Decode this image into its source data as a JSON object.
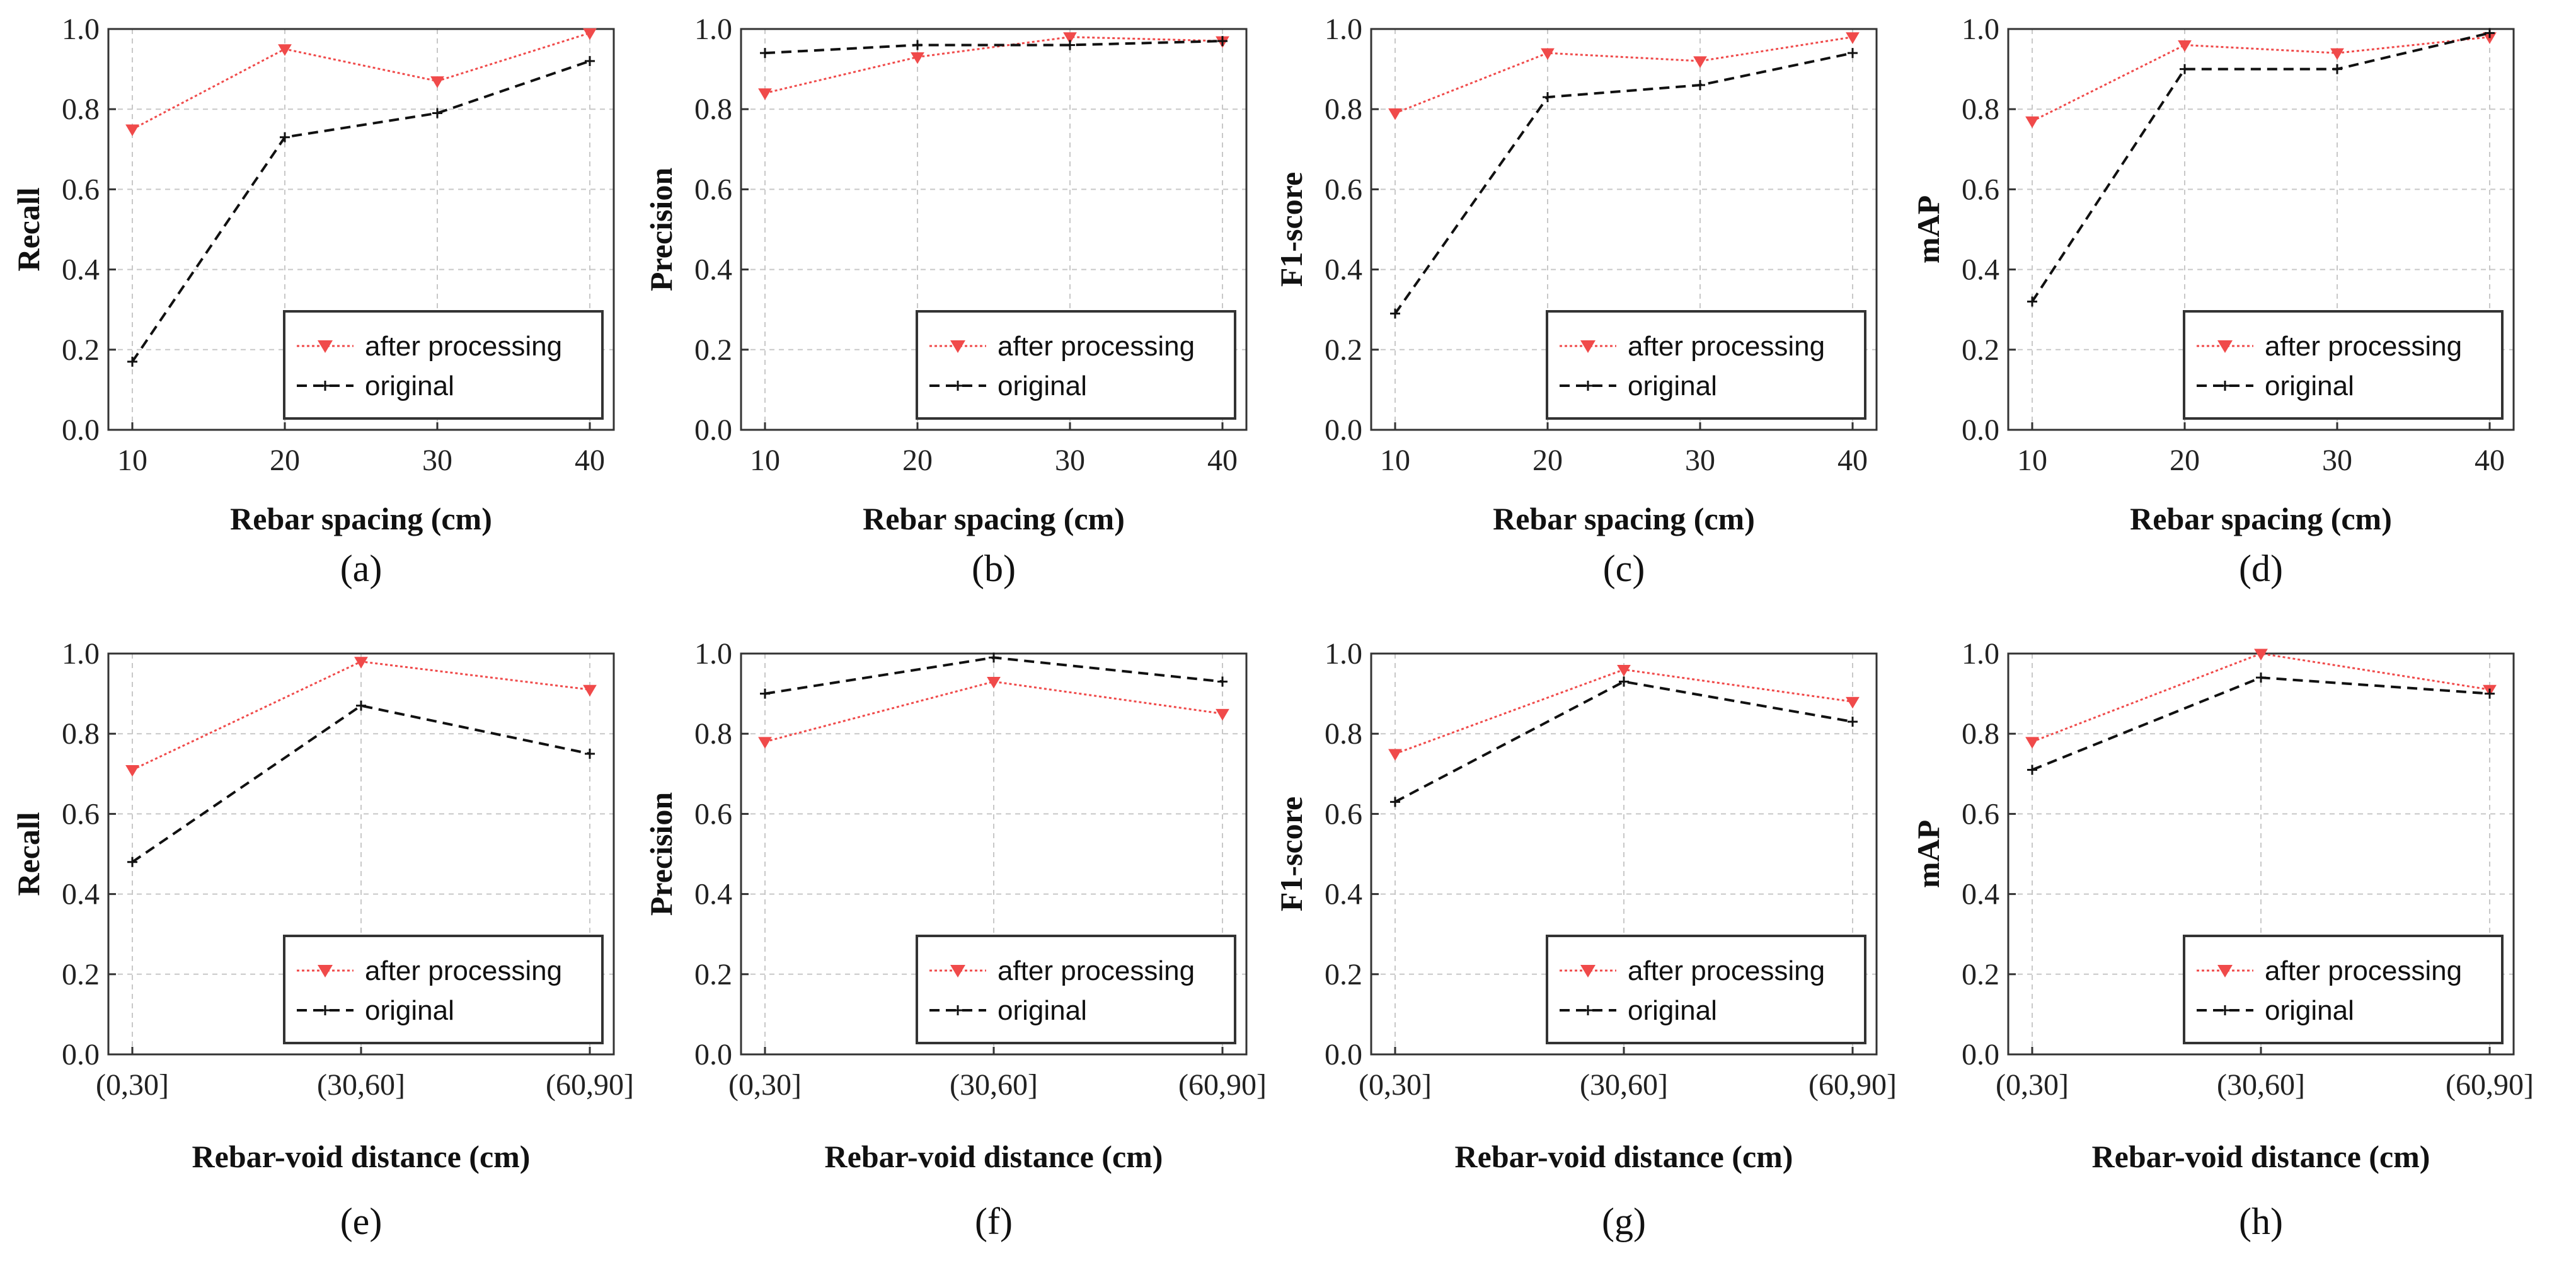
{
  "colors": {
    "after": "#f04a4a",
    "original": "#111111",
    "grid": "#c8c8c8",
    "frame": "#333333"
  },
  "legend_labels": [
    "after processing",
    "original"
  ],
  "chart_data": [
    {
      "type": "line",
      "caption": "(a)",
      "xlabel": "Rebar spacing (cm)",
      "ylabel": "Recall",
      "categories": [
        "10",
        "20",
        "30",
        "40"
      ],
      "ylim": [
        0,
        1.0
      ],
      "yticks": [
        "0.0",
        "0.2",
        "0.4",
        "0.6",
        "0.8",
        "1.0"
      ],
      "series": [
        {
          "name": "after processing",
          "values": [
            0.75,
            0.95,
            0.87,
            0.99
          ]
        },
        {
          "name": "original",
          "values": [
            0.17,
            0.73,
            0.79,
            0.92
          ]
        }
      ]
    },
    {
      "type": "line",
      "caption": "(b)",
      "xlabel": "Rebar spacing (cm)",
      "ylabel": "Precision",
      "categories": [
        "10",
        "20",
        "30",
        "40"
      ],
      "ylim": [
        0,
        1.0
      ],
      "yticks": [
        "0.0",
        "0.2",
        "0.4",
        "0.6",
        "0.8",
        "1.0"
      ],
      "series": [
        {
          "name": "after processing",
          "values": [
            0.84,
            0.93,
            0.98,
            0.97
          ]
        },
        {
          "name": "original",
          "values": [
            0.94,
            0.96,
            0.96,
            0.97
          ]
        }
      ]
    },
    {
      "type": "line",
      "caption": "(c)",
      "xlabel": "Rebar spacing (cm)",
      "ylabel": "F1-score",
      "categories": [
        "10",
        "20",
        "30",
        "40"
      ],
      "ylim": [
        0,
        1.0
      ],
      "yticks": [
        "0.0",
        "0.2",
        "0.4",
        "0.6",
        "0.8",
        "1.0"
      ],
      "series": [
        {
          "name": "after processing",
          "values": [
            0.79,
            0.94,
            0.92,
            0.98
          ]
        },
        {
          "name": "original",
          "values": [
            0.29,
            0.83,
            0.86,
            0.94
          ]
        }
      ]
    },
    {
      "type": "line",
      "caption": "(d)",
      "xlabel": "Rebar spacing (cm)",
      "ylabel": "mAP",
      "categories": [
        "10",
        "20",
        "30",
        "40"
      ],
      "ylim": [
        0,
        1.0
      ],
      "yticks": [
        "0.0",
        "0.2",
        "0.4",
        "0.6",
        "0.8",
        "1.0"
      ],
      "series": [
        {
          "name": "after processing",
          "values": [
            0.77,
            0.96,
            0.94,
            0.98
          ]
        },
        {
          "name": "original",
          "values": [
            0.32,
            0.9,
            0.9,
            0.99
          ]
        }
      ]
    },
    {
      "type": "line",
      "caption": "(e)",
      "xlabel": "Rebar-void distance (cm)",
      "ylabel": "Recall",
      "categories": [
        "(0,30]",
        "(30,60]",
        "(60,90]"
      ],
      "ylim": [
        0,
        1.0
      ],
      "yticks": [
        "0.0",
        "0.2",
        "0.4",
        "0.6",
        "0.8",
        "1.0"
      ],
      "series": [
        {
          "name": "after processing",
          "values": [
            0.71,
            0.98,
            0.91
          ]
        },
        {
          "name": "original",
          "values": [
            0.48,
            0.87,
            0.75
          ]
        }
      ]
    },
    {
      "type": "line",
      "caption": "(f)",
      "xlabel": "Rebar-void distance (cm)",
      "ylabel": "Precision",
      "categories": [
        "(0,30]",
        "(30,60]",
        "(60,90]"
      ],
      "ylim": [
        0,
        1.0
      ],
      "yticks": [
        "0.0",
        "0.2",
        "0.4",
        "0.6",
        "0.8",
        "1.0"
      ],
      "series": [
        {
          "name": "after processing",
          "values": [
            0.78,
            0.93,
            0.85
          ]
        },
        {
          "name": "original",
          "values": [
            0.9,
            0.99,
            0.93
          ]
        }
      ]
    },
    {
      "type": "line",
      "caption": "(g)",
      "xlabel": "Rebar-void distance (cm)",
      "ylabel": "F1-score",
      "categories": [
        "(0,30]",
        "(30,60]",
        "(60,90]"
      ],
      "ylim": [
        0,
        1.0
      ],
      "yticks": [
        "0.0",
        "0.2",
        "0.4",
        "0.6",
        "0.8",
        "1.0"
      ],
      "series": [
        {
          "name": "after processing",
          "values": [
            0.75,
            0.96,
            0.88
          ]
        },
        {
          "name": "original",
          "values": [
            0.63,
            0.93,
            0.83
          ]
        }
      ]
    },
    {
      "type": "line",
      "caption": "(h)",
      "xlabel": "Rebar-void distance (cm)",
      "ylabel": "mAP",
      "categories": [
        "(0,30]",
        "(30,60]",
        "(60,90]"
      ],
      "ylim": [
        0,
        1.0
      ],
      "yticks": [
        "0.0",
        "0.2",
        "0.4",
        "0.6",
        "0.8",
        "1.0"
      ],
      "series": [
        {
          "name": "after processing",
          "values": [
            0.78,
            1.0,
            0.91
          ]
        },
        {
          "name": "original",
          "values": [
            0.71,
            0.94,
            0.9
          ]
        }
      ]
    }
  ]
}
